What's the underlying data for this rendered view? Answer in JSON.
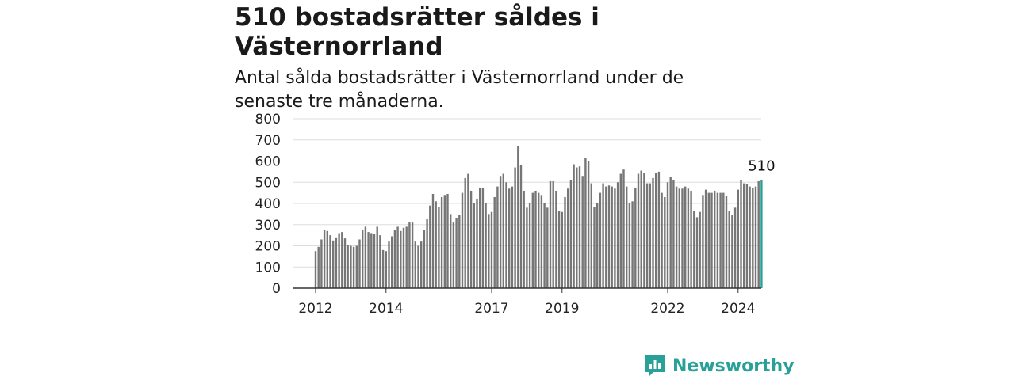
{
  "header": {
    "title": "510 bostadsrätter såldes i Västernorrland",
    "subtitle": "Antal sålda bostadsrätter i Västernorrland under de senaste tre månaderna."
  },
  "logo": {
    "icon": "newsworthy-logo-icon",
    "text": "Newsworthy"
  },
  "colors": {
    "bar": "#767676",
    "highlight": "#2aa198",
    "grid": "#dddddd",
    "axis": "#333333"
  },
  "chart_data": {
    "type": "bar",
    "title": "510 bostadsrätter såldes i Västernorrland",
    "ylim": [
      0,
      800
    ],
    "y_ticks": [
      "0",
      "100",
      "200",
      "300",
      "400",
      "500",
      "600",
      "700",
      "800"
    ],
    "x_ticks": [
      "2012",
      "2014",
      "2017",
      "2019",
      "2022",
      "2024"
    ],
    "start": "2012-01",
    "frequency": "monthly",
    "values": [
      175,
      195,
      230,
      275,
      270,
      250,
      225,
      240,
      260,
      265,
      235,
      205,
      200,
      195,
      200,
      230,
      275,
      290,
      265,
      260,
      255,
      290,
      250,
      180,
      175,
      220,
      245,
      275,
      290,
      270,
      285,
      290,
      310,
      310,
      220,
      200,
      220,
      275,
      325,
      390,
      445,
      410,
      385,
      430,
      440,
      445,
      350,
      310,
      330,
      345,
      450,
      520,
      540,
      460,
      400,
      420,
      475,
      475,
      400,
      350,
      360,
      430,
      480,
      530,
      540,
      500,
      470,
      480,
      570,
      670,
      580,
      460,
      380,
      400,
      450,
      460,
      450,
      440,
      400,
      380,
      505,
      505,
      460,
      365,
      360,
      430,
      470,
      510,
      585,
      570,
      575,
      530,
      615,
      600,
      495,
      385,
      400,
      450,
      495,
      480,
      485,
      480,
      470,
      500,
      540,
      560,
      480,
      400,
      410,
      475,
      540,
      555,
      545,
      495,
      495,
      520,
      545,
      550,
      450,
      430,
      500,
      525,
      510,
      480,
      470,
      470,
      480,
      470,
      460,
      365,
      335,
      360,
      440,
      465,
      450,
      450,
      460,
      450,
      450,
      450,
      435,
      365,
      345,
      380,
      465,
      510,
      495,
      490,
      480,
      475,
      480,
      505,
      510
    ],
    "highlight_label": "510"
  }
}
